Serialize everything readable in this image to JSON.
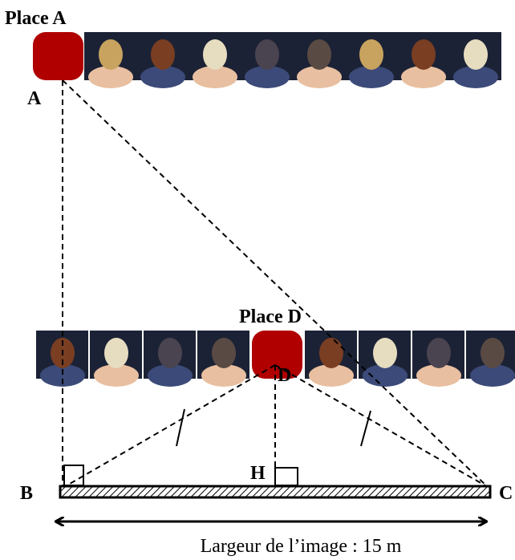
{
  "place_a": {
    "title": "Place A",
    "point": "A"
  },
  "place_d": {
    "title": "Place D",
    "point": "D"
  },
  "points": {
    "B": "B",
    "C": "C",
    "H": "H"
  },
  "width_label": "Largeur de l’image : 15 m"
}
